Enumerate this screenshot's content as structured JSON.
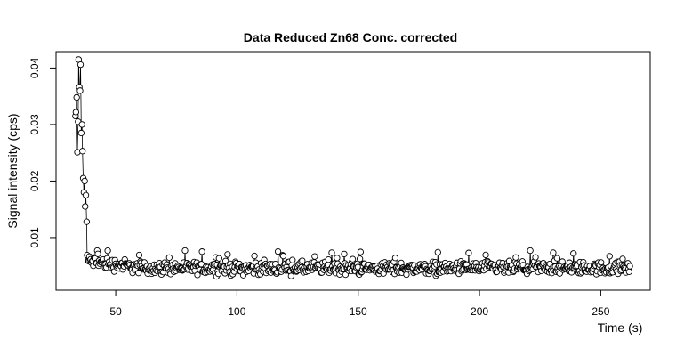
{
  "chart_data": {
    "type": "scatter",
    "title": "Data Reduced Zn68 Conc. corrected",
    "xlabel": "Time (s)",
    "ylabel": "Signal intensity (cps)",
    "x_ticks": [
      50,
      100,
      150,
      200,
      250
    ],
    "y_ticks": [
      0.01,
      0.02,
      0.03,
      0.04
    ],
    "xlim": [
      25.4,
      270.4
    ],
    "ylim": [
      0.0007,
      0.0429
    ],
    "grid": false,
    "legend": "none",
    "point_style": "open-circle",
    "connected": true,
    "baseline": {
      "x_start": 38.6,
      "x_end": 262.0,
      "level": 0.0046,
      "spread": 0.0011
    },
    "series": [
      {
        "x": [
          33.4,
          33.6,
          33.9,
          34.2,
          34.5,
          34.7,
          35.0,
          35.3,
          35.5,
          35.8,
          36.1,
          36.3,
          36.6,
          36.9,
          37.2,
          37.4,
          37.7,
          38.0,
          38.2
        ],
        "y": [
          0.0315,
          0.0322,
          0.0348,
          0.0251,
          0.0305,
          0.0415,
          0.0366,
          0.036,
          0.0406,
          0.0285,
          0.03,
          0.0253,
          0.0205,
          0.018,
          0.02,
          0.0155,
          0.0175,
          0.0128,
          0.0069
        ]
      }
    ]
  }
}
